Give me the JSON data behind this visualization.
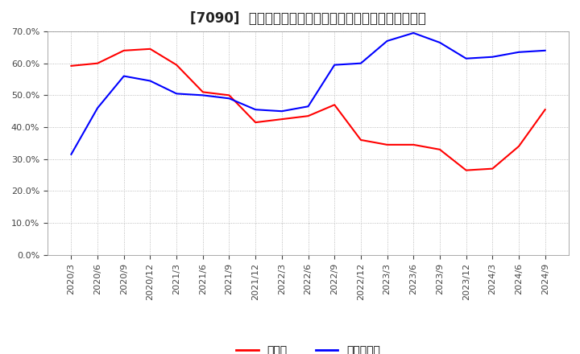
{
  "title": "[7090]  現預金、有利子負債の総資産に対する比率の推移",
  "x_labels": [
    "2020/3",
    "2020/6",
    "2020/9",
    "2020/12",
    "2021/3",
    "2021/6",
    "2021/9",
    "2021/12",
    "2022/3",
    "2022/6",
    "2022/9",
    "2022/12",
    "2023/3",
    "2023/6",
    "2023/9",
    "2023/12",
    "2024/3",
    "2024/6",
    "2024/9"
  ],
  "cash_values": [
    0.592,
    0.6,
    0.64,
    0.645,
    0.595,
    0.51,
    0.5,
    0.415,
    0.425,
    0.435,
    0.47,
    0.36,
    0.345,
    0.345,
    0.33,
    0.265,
    0.27,
    0.34,
    0.455
  ],
  "debt_values": [
    0.315,
    0.46,
    0.56,
    0.545,
    0.505,
    0.5,
    0.49,
    0.455,
    0.45,
    0.465,
    0.595,
    0.6,
    0.67,
    0.695,
    0.665,
    0.615,
    0.62,
    0.635,
    0.64
  ],
  "cash_color": "#ff0000",
  "debt_color": "#0000ff",
  "background_color": "#ffffff",
  "grid_color": "#aaaaaa",
  "ylim": [
    0.0,
    0.7
  ],
  "yticks": [
    0.0,
    0.1,
    0.2,
    0.3,
    0.4,
    0.5,
    0.6,
    0.7
  ],
  "legend_cash": "現預金",
  "legend_debt": "有利子負債",
  "title_fontsize": 12,
  "tick_fontsize": 8,
  "legend_fontsize": 10
}
